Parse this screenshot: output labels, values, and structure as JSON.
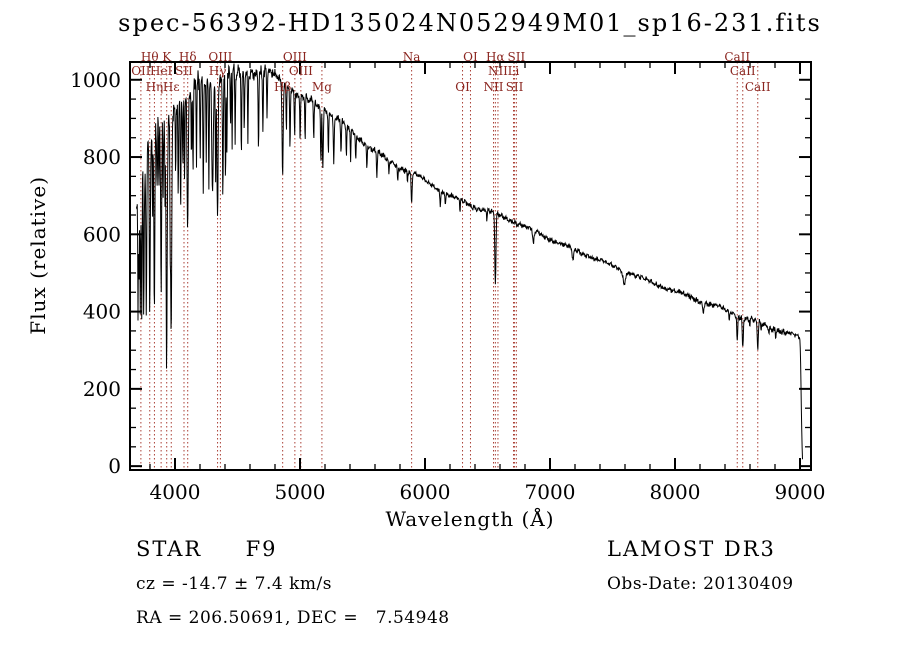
{
  "colors": {
    "background": "#ffffff",
    "spectrum": "#000000",
    "axis": "#000000",
    "marker_line": "#aa3f35",
    "marker_label": "#8b2620"
  },
  "chart_data": {
    "type": "line",
    "title": "spec-56392-HD135024N052949M01_sp16-231.fits",
    "xlabel": "Wavelength (Å)",
    "ylabel": "Flux (relative)",
    "xlim": [
      3640,
      9088
    ],
    "ylim": [
      -10,
      1046
    ],
    "x_ticks": [
      4000,
      5000,
      6000,
      7000,
      8000,
      9000
    ],
    "y_ticks": [
      0,
      200,
      400,
      600,
      800,
      1000
    ],
    "x_minor_step": 200,
    "y_minor_step": 50,
    "grid": false,
    "continuum_points": [
      [
        3692,
        700
      ],
      [
        3750,
        790
      ],
      [
        3800,
        830
      ],
      [
        3850,
        856
      ],
      [
        3900,
        882
      ],
      [
        3950,
        908
      ],
      [
        4000,
        945
      ],
      [
        4100,
        965
      ],
      [
        4200,
        985
      ],
      [
        4300,
        1000
      ],
      [
        4400,
        1010
      ],
      [
        4500,
        1015
      ],
      [
        4600,
        1020
      ],
      [
        4700,
        1018
      ],
      [
        4800,
        1010
      ],
      [
        4900,
        985
      ],
      [
        5000,
        955
      ],
      [
        5100,
        940
      ],
      [
        5200,
        925
      ],
      [
        5300,
        898
      ],
      [
        5400,
        870
      ],
      [
        5500,
        842
      ],
      [
        5600,
        816
      ],
      [
        5700,
        792
      ],
      [
        5800,
        775
      ],
      [
        5900,
        758
      ],
      [
        6000,
        738
      ],
      [
        6100,
        718
      ],
      [
        6200,
        700
      ],
      [
        6300,
        685
      ],
      [
        6400,
        670
      ],
      [
        6500,
        662
      ],
      [
        6600,
        648
      ],
      [
        6700,
        634
      ],
      [
        6800,
        620
      ],
      [
        6900,
        604
      ],
      [
        7000,
        588
      ],
      [
        7200,
        560
      ],
      [
        7400,
        532
      ],
      [
        7600,
        505
      ],
      [
        7800,
        478
      ],
      [
        8000,
        452
      ],
      [
        8200,
        428
      ],
      [
        8400,
        405
      ],
      [
        8500,
        392
      ],
      [
        8600,
        380
      ],
      [
        8700,
        368
      ],
      [
        8800,
        356
      ],
      [
        8900,
        344
      ],
      [
        8960,
        336
      ],
      [
        9000,
        330
      ],
      [
        9006,
        250
      ],
      [
        9012,
        120
      ],
      [
        9018,
        30
      ],
      [
        9022,
        8
      ]
    ],
    "absorption_features": [
      [
        3704,
        0.45,
        7
      ],
      [
        3712,
        0.4,
        7
      ],
      [
        3722,
        0.45,
        7
      ],
      [
        3734,
        0.5,
        8
      ],
      [
        3750,
        0.48,
        9
      ],
      [
        3771,
        0.5,
        10
      ],
      [
        3798,
        0.52,
        11
      ],
      [
        3820,
        0.25,
        7
      ],
      [
        3835,
        0.52,
        11
      ],
      [
        3856,
        0.25,
        7
      ],
      [
        3871,
        0.2,
        6
      ],
      [
        3889,
        0.5,
        12
      ],
      [
        3905,
        0.2,
        6
      ],
      [
        3920,
        0.25,
        6
      ],
      [
        3933,
        0.72,
        13
      ],
      [
        3961,
        0.3,
        8
      ],
      [
        3969,
        0.62,
        13
      ],
      [
        4005,
        0.2,
        7
      ],
      [
        4026,
        0.25,
        8
      ],
      [
        4045,
        0.28,
        8
      ],
      [
        4063,
        0.2,
        7
      ],
      [
        4077,
        0.22,
        7
      ],
      [
        4101,
        0.38,
        13
      ],
      [
        4132,
        0.2,
        7
      ],
      [
        4144,
        0.25,
        8
      ],
      [
        4172,
        0.22,
        7
      ],
      [
        4202,
        0.2,
        7
      ],
      [
        4226,
        0.3,
        8
      ],
      [
        4250,
        0.2,
        7
      ],
      [
        4271,
        0.25,
        8
      ],
      [
        4300,
        0.28,
        16
      ],
      [
        4325,
        0.25,
        8
      ],
      [
        4340,
        0.35,
        13
      ],
      [
        4383,
        0.3,
        9
      ],
      [
        4404,
        0.28,
        8
      ],
      [
        4415,
        0.2,
        7
      ],
      [
        4444,
        0.15,
        7
      ],
      [
        4457,
        0.18,
        7
      ],
      [
        4481,
        0.18,
        7
      ],
      [
        4531,
        0.2,
        8
      ],
      [
        4554,
        0.15,
        7
      ],
      [
        4583,
        0.18,
        7
      ],
      [
        4668,
        0.2,
        8
      ],
      [
        4703,
        0.15,
        8
      ],
      [
        4736,
        0.12,
        7
      ],
      [
        4861,
        0.24,
        13
      ],
      [
        4891,
        0.12,
        7
      ],
      [
        4920,
        0.15,
        8
      ],
      [
        4957,
        0.12,
        7
      ],
      [
        5001,
        0.12,
        7
      ],
      [
        5041,
        0.12,
        7
      ],
      [
        5110,
        0.1,
        8
      ],
      [
        5167,
        0.15,
        9
      ],
      [
        5183,
        0.17,
        10
      ],
      [
        5227,
        0.12,
        8
      ],
      [
        5270,
        0.14,
        10
      ],
      [
        5328,
        0.1,
        8
      ],
      [
        5371,
        0.09,
        8
      ],
      [
        5405,
        0.09,
        8
      ],
      [
        5446,
        0.08,
        8
      ],
      [
        5535,
        0.07,
        8
      ],
      [
        5615,
        0.08,
        9
      ],
      [
        5711,
        0.05,
        8
      ],
      [
        5782,
        0.05,
        8
      ],
      [
        5860,
        0.04,
        7
      ],
      [
        5893,
        0.11,
        11
      ],
      [
        6122,
        0.05,
        8
      ],
      [
        6163,
        0.04,
        8
      ],
      [
        6280,
        0.05,
        9
      ],
      [
        6495,
        0.04,
        9
      ],
      [
        6563,
        0.28,
        13
      ],
      [
        6867,
        0.06,
        16
      ],
      [
        7184,
        0.05,
        20
      ],
      [
        7594,
        0.07,
        24
      ],
      [
        8227,
        0.05,
        14
      ],
      [
        8434,
        0.05,
        10
      ],
      [
        8498,
        0.16,
        11
      ],
      [
        8542,
        0.21,
        12
      ],
      [
        8598,
        0.05,
        9
      ],
      [
        8662,
        0.19,
        12
      ],
      [
        8688,
        0.06,
        9
      ],
      [
        8750,
        0.05,
        10
      ],
      [
        8806,
        0.04,
        9
      ]
    ],
    "noise_profile": [
      [
        3692,
        60
      ],
      [
        3760,
        55
      ],
      [
        3900,
        45
      ],
      [
        4000,
        30
      ],
      [
        4200,
        24
      ],
      [
        4500,
        18
      ],
      [
        4800,
        13
      ],
      [
        5200,
        10
      ],
      [
        5600,
        9
      ],
      [
        6000,
        8
      ],
      [
        6600,
        7
      ],
      [
        7200,
        7
      ],
      [
        8000,
        8
      ],
      [
        8500,
        9
      ],
      [
        8900,
        8
      ],
      [
        9005,
        4
      ]
    ],
    "line_markers": [
      {
        "label": "OII",
        "wavelength": 3727.1,
        "row": 2
      },
      {
        "label": "Hθ",
        "wavelength": 3798.0,
        "row": 1
      },
      {
        "label": "Hη",
        "wavelength": 3835.4,
        "row": 3
      },
      {
        "label": "HeI",
        "wavelength": 3889.0,
        "row": 2
      },
      {
        "label": "K",
        "wavelength": 3933.7,
        "row": 1
      },
      {
        "label": "Hε",
        "wavelength": 3970.1,
        "row": 3
      },
      {
        "label": "SII",
        "wavelength": 4072.0,
        "row": 2
      },
      {
        "label": "Hδ",
        "wavelength": 4101.7,
        "row": 1
      },
      {
        "label": "Hγ",
        "wavelength": 4340.5,
        "row": 2
      },
      {
        "label": "OIII",
        "wavelength": 4363.2,
        "row": 1
      },
      {
        "label": "Hβ",
        "wavelength": 4861.3,
        "row": 3
      },
      {
        "label": "OIII",
        "wavelength": 4958.9,
        "row": 1
      },
      {
        "label": "OIII",
        "wavelength": 5006.8,
        "row": 2
      },
      {
        "label": "Mg",
        "wavelength": 5175.3,
        "row": 3
      },
      {
        "label": "Na",
        "wavelength": 5893.0,
        "row": 1
      },
      {
        "label": "OI",
        "wavelength": 6300.3,
        "row": 3
      },
      {
        "label": "OI",
        "wavelength": 6363.8,
        "row": 1
      },
      {
        "label": "NII",
        "wavelength": 6548.1,
        "row": 3
      },
      {
        "label": "Hα",
        "wavelength": 6562.8,
        "row": 1
      },
      {
        "label": "NII",
        "wavelength": 6583.5,
        "row": 2
      },
      {
        "label": "Li",
        "wavelength": 6707.9,
        "row": 2
      },
      {
        "label": "SII",
        "wavelength": 6716.4,
        "row": 3
      },
      {
        "label": "SII",
        "wavelength": 6730.8,
        "row": 1
      },
      {
        "label": "CaII",
        "wavelength": 8498.0,
        "row": 1
      },
      {
        "label": "CaII",
        "wavelength": 8542.1,
        "row": 2
      },
      {
        "label": "CaII",
        "wavelength": 8662.1,
        "row": 3
      }
    ]
  },
  "footer": {
    "class": "STAR     F9",
    "survey": "LAMOST DR3",
    "cz": "cz = -14.7 ± 7.4 km/s",
    "obs_date": "Obs-Date: 20130409",
    "ra_dec": "RA = 206.50691, DEC =   7.54948"
  }
}
